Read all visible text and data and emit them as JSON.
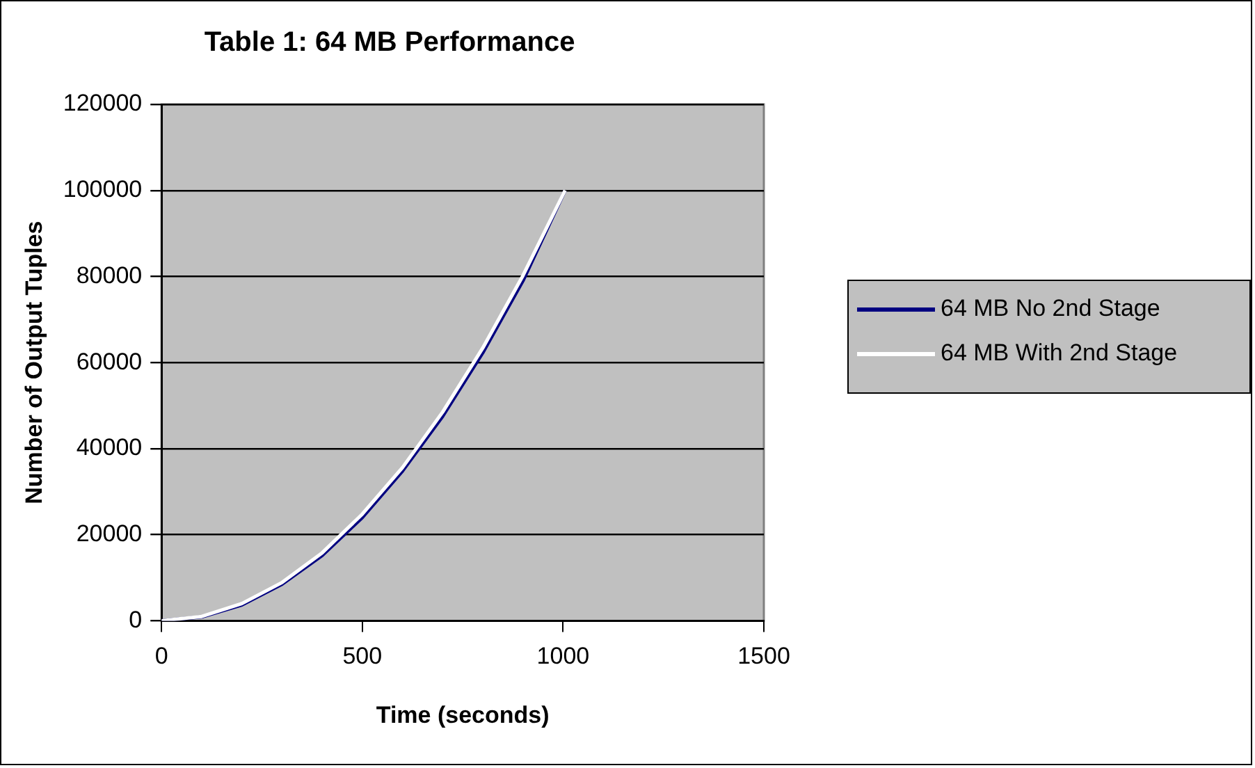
{
  "chart_data": {
    "type": "line",
    "title": "Table 1: 64 MB Performance",
    "xlabel": "Time (seconds)",
    "ylabel": "Number of Output Tuples",
    "x": [
      0,
      100,
      200,
      300,
      400,
      500,
      600,
      700,
      800,
      900,
      1005
    ],
    "series": [
      {
        "name": "64 MB No 2nd Stage",
        "color": "#000080",
        "values": [
          0,
          900,
          3700,
          8500,
          15200,
          24000,
          34800,
          47500,
          62300,
          79000,
          100000
        ]
      },
      {
        "name": "64 MB With 2nd Stage",
        "color": "#ffffff",
        "values": [
          0,
          1000,
          4000,
          8900,
          15800,
          24800,
          35600,
          48500,
          63400,
          80200,
          100000
        ]
      }
    ],
    "xlim": [
      0,
      1500
    ],
    "xticks": [
      0,
      500,
      1000,
      1500
    ],
    "ylim": [
      0,
      120000
    ],
    "yticks": [
      0,
      20000,
      40000,
      60000,
      80000,
      100000,
      120000
    ],
    "grid": "y",
    "legend": "right",
    "marker": "none",
    "line_style": "solid"
  }
}
